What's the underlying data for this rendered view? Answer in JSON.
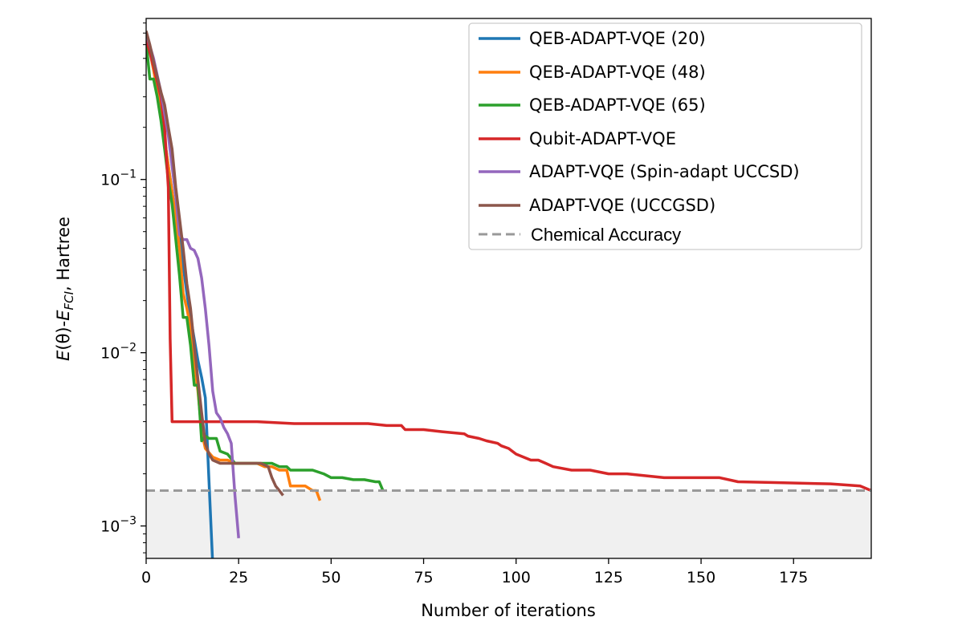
{
  "chart_data": {
    "type": "line",
    "yscale": "log",
    "xlabel": "Number of iterations",
    "ylabel_parts": {
      "e": "E",
      "theta": "(θ)-",
      "efci": "E",
      "sub": "FCI",
      "rest": ", Hartree"
    },
    "xlim": [
      0,
      196
    ],
    "ylim": [
      0.00065,
      0.85
    ],
    "xticks": [
      0,
      25,
      50,
      75,
      100,
      125,
      150,
      175
    ],
    "yticks": [
      {
        "value": 0.001,
        "base": "10",
        "exp": "−3"
      },
      {
        "value": 0.01,
        "base": "10",
        "exp": "−2"
      },
      {
        "value": 0.1,
        "base": "10",
        "exp": "−1"
      }
    ],
    "chemical_accuracy": 0.0016,
    "legend_position": "top-right",
    "series": [
      {
        "name": "QEB-ADAPT-VQE (20)",
        "color": "#1f77b4",
        "x": [
          0,
          1,
          2,
          3,
          4,
          5,
          6,
          7,
          8,
          9,
          10,
          11,
          12,
          13,
          14,
          15,
          16,
          17,
          18
        ],
        "y": [
          0.68,
          0.55,
          0.43,
          0.33,
          0.24,
          0.17,
          0.12,
          0.085,
          0.06,
          0.045,
          0.032,
          0.022,
          0.016,
          0.012,
          0.009,
          0.0072,
          0.0055,
          0.0018,
          0.0006
        ]
      },
      {
        "name": "QEB-ADAPT-VQE (48)",
        "color": "#ff7f0e",
        "x": [
          0,
          1,
          2,
          3,
          4,
          5,
          6,
          7,
          8,
          9,
          10,
          11,
          12,
          13,
          14,
          15,
          16,
          18,
          20,
          22,
          24,
          26,
          28,
          30,
          32,
          34,
          36,
          38,
          39,
          41,
          43,
          45,
          46,
          47
        ],
        "y": [
          0.68,
          0.55,
          0.43,
          0.33,
          0.24,
          0.17,
          0.12,
          0.085,
          0.06,
          0.04,
          0.022,
          0.018,
          0.014,
          0.009,
          0.006,
          0.0035,
          0.0028,
          0.0025,
          0.0024,
          0.0024,
          0.0023,
          0.0023,
          0.0023,
          0.0023,
          0.0022,
          0.0022,
          0.0021,
          0.0021,
          0.0017,
          0.0017,
          0.0017,
          0.0016,
          0.0016,
          0.0014
        ]
      },
      {
        "name": "QEB-ADAPT-VQE (65)",
        "color": "#2ca02c",
        "x": [
          0,
          1,
          2,
          3,
          4,
          5,
          6,
          7,
          8,
          9,
          10,
          11,
          12,
          13,
          14,
          15,
          16,
          17,
          18,
          19,
          20,
          22,
          24,
          26,
          28,
          30,
          32,
          34,
          36,
          38,
          39,
          42,
          45,
          48,
          50,
          53,
          56,
          59,
          62,
          63,
          64
        ],
        "y": [
          0.62,
          0.38,
          0.38,
          0.3,
          0.22,
          0.15,
          0.1,
          0.072,
          0.045,
          0.028,
          0.016,
          0.016,
          0.011,
          0.0065,
          0.0065,
          0.0031,
          0.0033,
          0.0032,
          0.0032,
          0.0032,
          0.0027,
          0.0026,
          0.0023,
          0.0023,
          0.0023,
          0.0023,
          0.0023,
          0.0023,
          0.0022,
          0.0022,
          0.0021,
          0.0021,
          0.0021,
          0.002,
          0.0019,
          0.0019,
          0.00185,
          0.00185,
          0.0018,
          0.0018,
          0.0016
        ]
      },
      {
        "name": "Qubit-ADAPT-VQE",
        "color": "#d62728",
        "x": [
          0,
          2,
          4,
          5,
          6,
          6.5,
          7,
          10,
          20,
          30,
          40,
          50,
          60,
          65,
          69,
          70,
          75,
          80,
          86,
          87,
          90,
          92,
          95,
          96,
          98,
          100,
          102,
          104,
          106,
          108,
          110,
          115,
          120,
          125,
          130,
          140,
          150,
          155,
          160,
          170,
          180,
          185,
          190,
          193,
          196
        ],
        "y": [
          0.65,
          0.45,
          0.3,
          0.2,
          0.09,
          0.012,
          0.004,
          0.004,
          0.004,
          0.004,
          0.0039,
          0.0039,
          0.0039,
          0.0038,
          0.0038,
          0.0036,
          0.0036,
          0.0035,
          0.0034,
          0.0033,
          0.0032,
          0.0031,
          0.003,
          0.0029,
          0.0028,
          0.0026,
          0.0025,
          0.0024,
          0.0024,
          0.0023,
          0.0022,
          0.0021,
          0.0021,
          0.002,
          0.002,
          0.0019,
          0.0019,
          0.0019,
          0.0018,
          0.00178,
          0.00176,
          0.00175,
          0.00172,
          0.0017,
          0.0016
        ]
      },
      {
        "name": "ADAPT-VQE (Spin-adapt UCCSD)",
        "color": "#9467bd",
        "x": [
          0,
          2,
          4,
          6,
          8,
          9,
          10,
          11,
          12,
          13,
          14,
          15,
          16,
          17,
          18,
          19,
          20,
          21,
          22,
          23,
          24,
          25
        ],
        "y": [
          0.7,
          0.5,
          0.32,
          0.18,
          0.08,
          0.048,
          0.045,
          0.045,
          0.04,
          0.039,
          0.035,
          0.027,
          0.018,
          0.011,
          0.006,
          0.0045,
          0.0042,
          0.0037,
          0.0034,
          0.003,
          0.0015,
          0.00085
        ]
      },
      {
        "name": "ADAPT-VQE (UCCGSD)",
        "color": "#8c564b",
        "x": [
          0,
          1,
          2,
          3,
          4,
          5,
          6,
          7,
          8,
          9,
          10,
          11,
          12,
          13,
          14,
          15,
          16,
          17,
          18,
          20,
          22,
          25,
          28,
          31,
          33,
          34,
          35,
          36,
          37
        ],
        "y": [
          0.72,
          0.6,
          0.48,
          0.39,
          0.32,
          0.27,
          0.2,
          0.15,
          0.09,
          0.06,
          0.04,
          0.025,
          0.018,
          0.011,
          0.007,
          0.0045,
          0.003,
          0.0026,
          0.0024,
          0.0023,
          0.0023,
          0.0023,
          0.0023,
          0.0023,
          0.0022,
          0.0019,
          0.0017,
          0.0016,
          0.0015
        ]
      }
    ],
    "reference": {
      "name": "Chemical Accuracy",
      "color": "#999999"
    }
  }
}
